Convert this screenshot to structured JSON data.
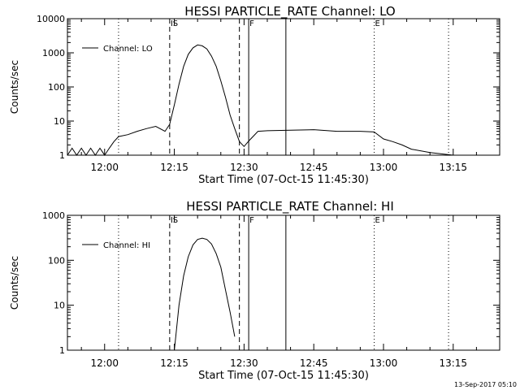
{
  "footer_timestamp": "13-Sep-2017 05:10",
  "chart_data": [
    {
      "type": "line",
      "title": "HESSI PARTICLE_RATE Channel: LO",
      "xlabel": "Start Time (07-Oct-15 11:45:30)",
      "ylabel": "Counts/sec",
      "yscale": "log",
      "xlim": [
        "11:52",
        "13:25"
      ],
      "ylim": [
        1,
        10000
      ],
      "x_ticks": [
        "12:00",
        "12:15",
        "12:30",
        "12:45",
        "13:00",
        "13:15"
      ],
      "y_ticks": [
        "1",
        "10",
        "100",
        "1000",
        "10000"
      ],
      "legend": {
        "label": "Channel: LO",
        "placement": "top-left"
      },
      "markers": [
        {
          "time": "12:14",
          "style": "dashed",
          "label": "IS"
        },
        {
          "time": "12:29",
          "style": "dashed",
          "label": ""
        },
        {
          "time": "12:31",
          "style": "solid",
          "label": "F"
        },
        {
          "time": "12:39",
          "style": "solid",
          "label": ""
        },
        {
          "time": "12:03",
          "style": "dotted",
          "label": ""
        },
        {
          "time": "12:58",
          "style": "dotted",
          "label": "E"
        },
        {
          "time": "13:14",
          "style": "dotted",
          "label": ""
        }
      ],
      "series": [
        {
          "x": [
            "11:52",
            "11:53",
            "11:54",
            "11:55",
            "11:56",
            "11:57",
            "11:58",
            "11:59",
            "12:00",
            "12:01",
            "12:02",
            "12:03",
            "12:05",
            "12:07",
            "12:09",
            "12:11",
            "12:13",
            "12:14",
            "12:15",
            "12:16",
            "12:17",
            "12:18",
            "12:19",
            "12:20",
            "12:21",
            "12:22",
            "12:23",
            "12:24",
            "12:25",
            "12:26",
            "12:27",
            "12:28",
            "12:29",
            "12:30",
            "12:31",
            "12:33",
            "12:35",
            "12:40",
            "12:45",
            "12:50",
            "12:55",
            "12:58",
            "13:00",
            "13:02",
            "13:04",
            "13:06",
            "13:10",
            "13:15",
            "13:20",
            "13:25"
          ],
          "values": [
            1,
            1.6,
            1,
            1.6,
            1,
            1.6,
            1,
            1.6,
            1,
            1.6,
            2.5,
            3.5,
            4,
            5,
            6,
            7,
            5,
            8,
            30,
            120,
            400,
            900,
            1400,
            1700,
            1600,
            1300,
            800,
            400,
            150,
            50,
            15,
            6,
            2.5,
            1.8,
            2.6,
            5,
            5.2,
            5.4,
            5.6,
            5,
            5,
            4.8,
            3,
            2.5,
            2,
            1.5,
            1.2,
            1,
            1,
            1
          ]
        }
      ]
    },
    {
      "type": "line",
      "title": "HESSI PARTICLE_RATE Channel: HI",
      "xlabel": "Start Time (07-Oct-15 11:45:30)",
      "ylabel": "Counts/sec",
      "yscale": "log",
      "xlim": [
        "11:52",
        "13:25"
      ],
      "ylim": [
        1,
        1000
      ],
      "x_ticks": [
        "12:00",
        "12:15",
        "12:30",
        "12:45",
        "13:00",
        "13:15"
      ],
      "y_ticks": [
        "1",
        "10",
        "100",
        "1000"
      ],
      "legend": {
        "label": "Channel: HI",
        "placement": "top-left"
      },
      "markers": [
        {
          "time": "12:14",
          "style": "dashed",
          "label": "IS"
        },
        {
          "time": "12:29",
          "style": "dashed",
          "label": ""
        },
        {
          "time": "12:31",
          "style": "solid",
          "label": "F"
        },
        {
          "time": "12:39",
          "style": "solid",
          "label": ""
        },
        {
          "time": "12:03",
          "style": "dotted",
          "label": ""
        },
        {
          "time": "12:58",
          "style": "dotted",
          "label": "E"
        },
        {
          "time": "13:14",
          "style": "dotted",
          "label": ""
        }
      ],
      "series": [
        {
          "x": [
            "12:15",
            "12:16",
            "12:17",
            "12:18",
            "12:19",
            "12:20",
            "12:21",
            "12:22",
            "12:23",
            "12:24",
            "12:25",
            "12:26",
            "12:27",
            "12:28"
          ],
          "values": [
            1,
            10,
            45,
            120,
            220,
            290,
            310,
            290,
            230,
            140,
            70,
            22,
            7,
            2
          ]
        }
      ]
    }
  ]
}
